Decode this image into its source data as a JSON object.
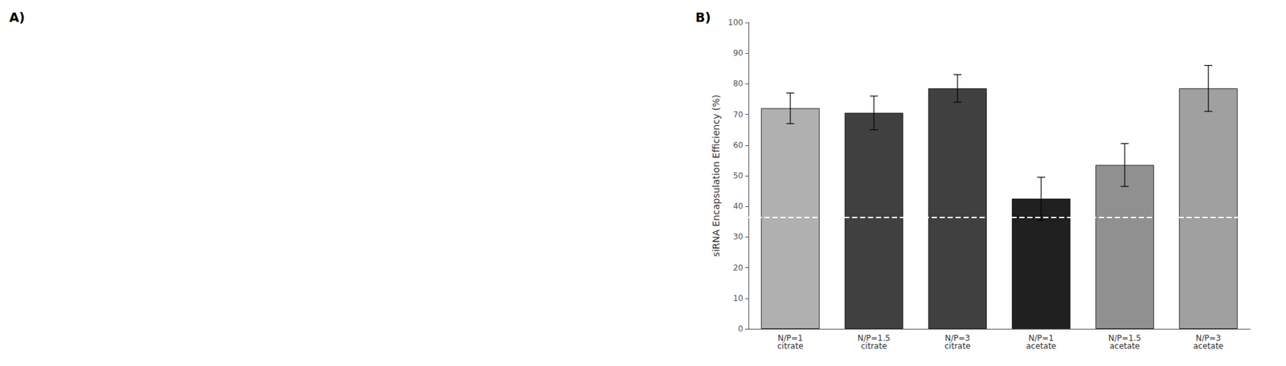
{
  "chart_data": {
    "type": "bar",
    "categories": [
      "N/P=1\ncitrate",
      "N/P=1.5\ncitrate",
      "N/P=3\ncitrate",
      "N/P=1\nacetate",
      "N/P=1.5\nacetate",
      "N/P=3\nacetate"
    ],
    "values": [
      72.0,
      70.5,
      78.5,
      42.5,
      53.5,
      78.5
    ],
    "errors": [
      5.0,
      5.5,
      4.5,
      7.0,
      7.0,
      7.5
    ],
    "colors": [
      "#b0b0b0",
      "#404040",
      "#404040",
      "#202020",
      "#909090",
      "#a0a0a0"
    ],
    "ylabel": "siRNA Encapsulation Efficiency (%)",
    "ylim": [
      0,
      100
    ],
    "yticks": [
      0,
      10,
      20,
      30,
      40,
      50,
      60,
      70,
      80,
      90,
      100
    ],
    "reference_line": {
      "y": 36.5,
      "color": "#ffffff",
      "line_style": "dashed"
    },
    "annotations": [
      "A)",
      "B)"
    ],
    "grid": false
  }
}
